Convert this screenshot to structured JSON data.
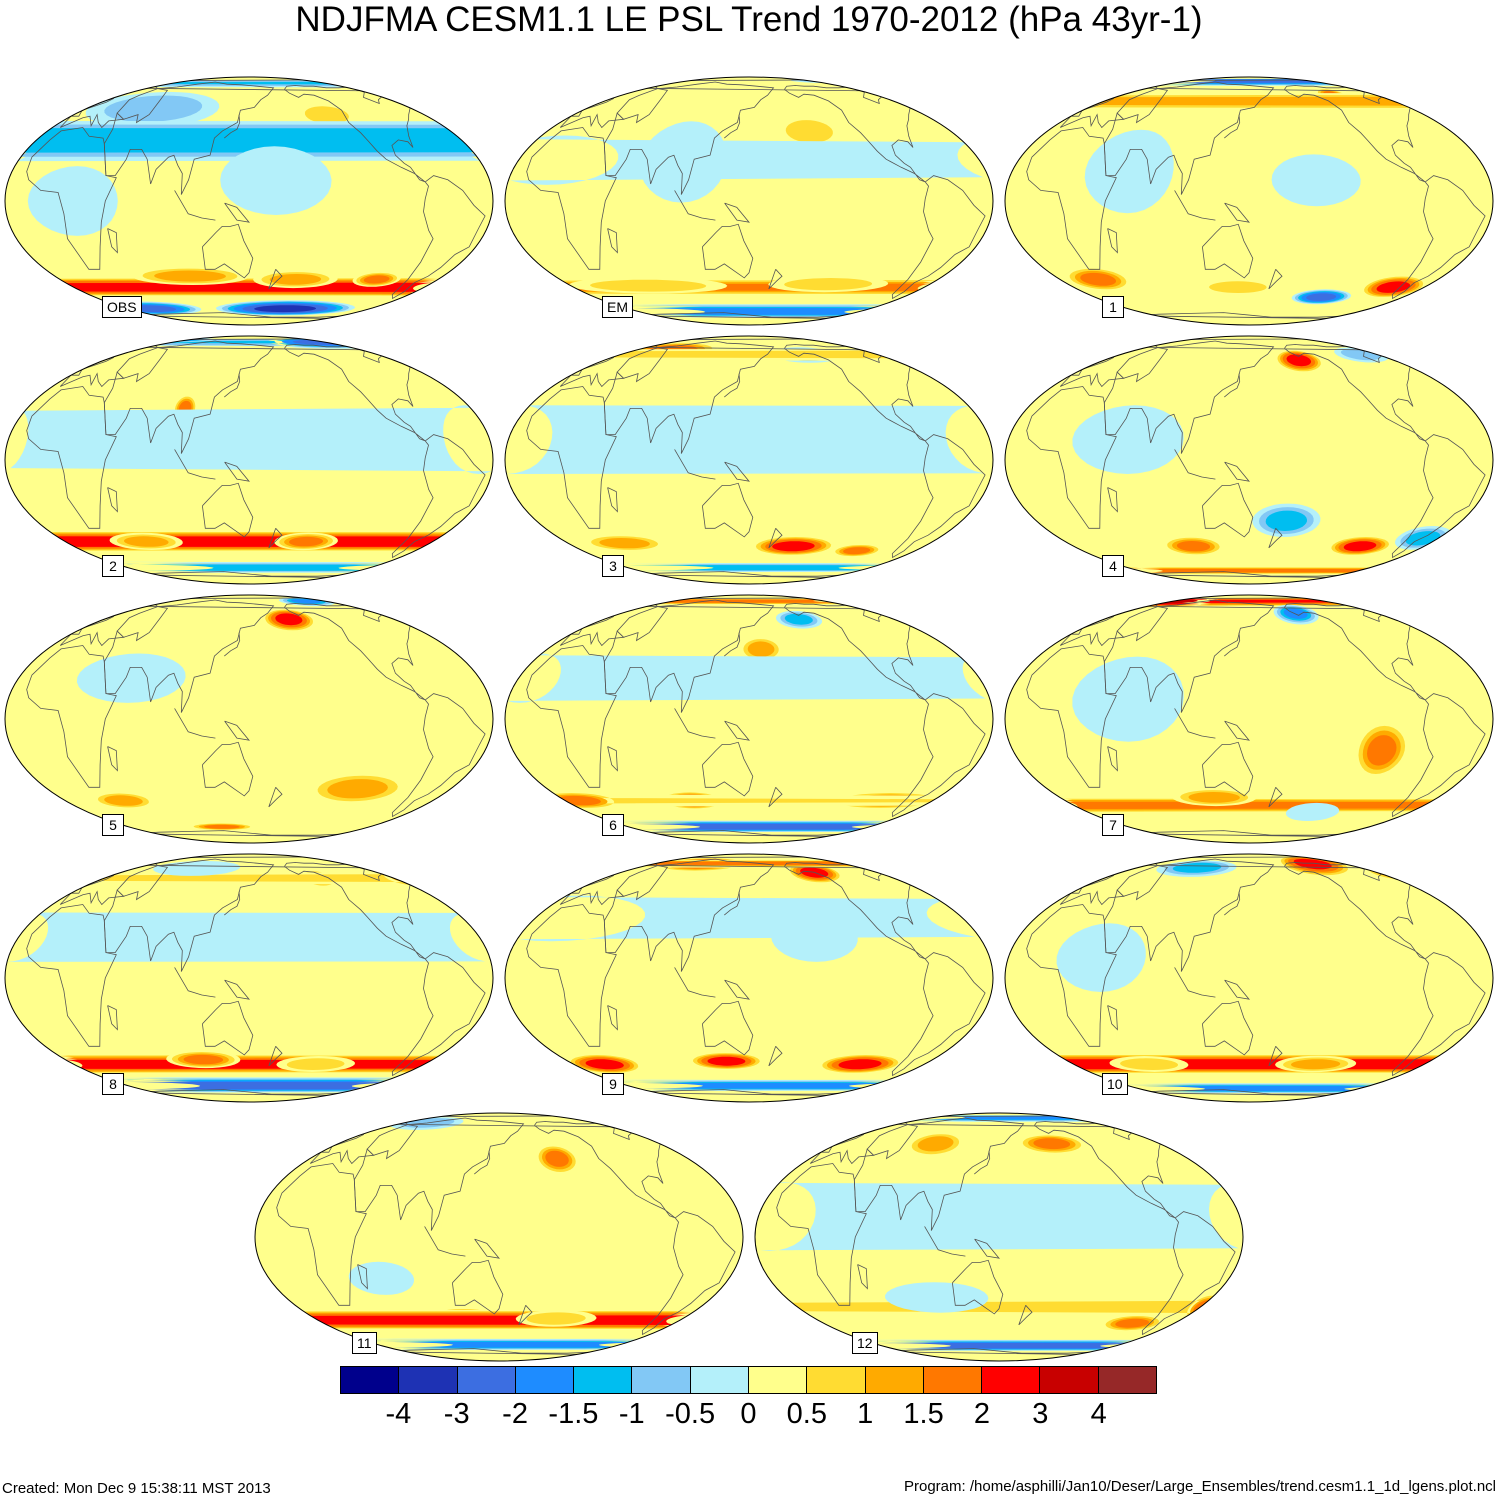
{
  "title": "NDJFMA CESM1.1 LE PSL Trend 1970-2012 (hPa 43yr-1)",
  "panels": [
    {
      "label": "OBS",
      "features": [
        {
          "lon": -170,
          "lat": -62,
          "rx": 80,
          "ry": 8,
          "v": -4
        },
        {
          "lon": 40,
          "lat": -62,
          "rx": 60,
          "ry": 7,
          "v": -3
        },
        {
          "lon": -40,
          "lat": -45,
          "rx": 45,
          "ry": 7,
          "v": 3
        },
        {
          "lon": -100,
          "lat": -40,
          "rx": 22,
          "ry": 5,
          "v": 2
        },
        {
          "lon": 100,
          "lat": -38,
          "rx": 55,
          "ry": 6,
          "v": 1.5
        },
        {
          "lon": -170,
          "lat": -40,
          "rx": 40,
          "ry": 6,
          "v": 1.5
        },
        {
          "lon": -140,
          "lat": 45,
          "rx": 30,
          "ry": 9,
          "v": 1
        },
        {
          "lon": 60,
          "lat": 50,
          "rx": 70,
          "ry": 15,
          "v": -1
        },
        {
          "lon": -60,
          "lat": 75,
          "rx": 60,
          "ry": 8,
          "v": -1.5
        },
        {
          "lon": -30,
          "lat": 30,
          "rx": 15,
          "ry": 12,
          "v": -1.5
        },
        {
          "lon": 20,
          "lat": 0,
          "rx": 40,
          "ry": 20,
          "v": -0.5
        },
        {
          "lon": 170,
          "lat": 10,
          "rx": 50,
          "ry": 20,
          "v": -0.5
        }
      ]
    },
    {
      "label": "EM",
      "features": [
        {
          "lon": 0,
          "lat": -65,
          "rx": 200,
          "ry": 8,
          "v": -2
        },
        {
          "lon": -40,
          "lat": -45,
          "rx": 35,
          "ry": 6,
          "v": 2
        },
        {
          "lon": 60,
          "lat": -44,
          "rx": 80,
          "ry": 6,
          "v": 1
        },
        {
          "lon": -140,
          "lat": -43,
          "rx": 60,
          "ry": 6,
          "v": 1
        },
        {
          "lon": -160,
          "lat": 35,
          "rx": 30,
          "ry": 10,
          "v": 1
        },
        {
          "lon": 0,
          "lat": 20,
          "rx": 60,
          "ry": 15,
          "v": -0.5
        },
        {
          "lon": 100,
          "lat": 20,
          "rx": 40,
          "ry": 25,
          "v": -0.5
        },
        {
          "lon": -90,
          "lat": 80,
          "rx": 60,
          "ry": 6,
          "v": -1
        }
      ]
    },
    {
      "label": "1",
      "features": [
        {
          "lon": 0,
          "lat": 80,
          "rx": 200,
          "ry": 10,
          "v": -3
        },
        {
          "lon": -120,
          "lat": 60,
          "rx": 18,
          "ry": 8,
          "v": 2
        },
        {
          "lon": -40,
          "lat": 55,
          "rx": 30,
          "ry": 8,
          "v": 1.5
        },
        {
          "lon": -80,
          "lat": -45,
          "rx": 30,
          "ry": 8,
          "v": 3
        },
        {
          "lon": -140,
          "lat": -52,
          "rx": 30,
          "ry": 6,
          "v": -3
        },
        {
          "lon": 20,
          "lat": -40,
          "rx": 30,
          "ry": 8,
          "v": 2
        },
        {
          "lon": 140,
          "lat": -45,
          "rx": 40,
          "ry": 6,
          "v": 1
        },
        {
          "lon": 60,
          "lat": 15,
          "rx": 40,
          "ry": 25,
          "v": -0.5
        },
        {
          "lon": -160,
          "lat": 10,
          "rx": 40,
          "ry": 15,
          "v": -0.5
        }
      ]
    },
    {
      "label": "2",
      "features": [
        {
          "lon": -100,
          "lat": 75,
          "rx": 100,
          "ry": 10,
          "v": -3
        },
        {
          "lon": 40,
          "lat": 80,
          "rx": 60,
          "ry": 6,
          "v": -2
        },
        {
          "lon": -30,
          "lat": -42,
          "rx": 35,
          "ry": 7,
          "v": 3
        },
        {
          "lon": -160,
          "lat": -42,
          "rx": 30,
          "ry": 6,
          "v": 2
        },
        {
          "lon": 60,
          "lat": -42,
          "rx": 35,
          "ry": 6,
          "v": 1.5
        },
        {
          "lon": 0,
          "lat": -62,
          "rx": 200,
          "ry": 6,
          "v": -1.5
        },
        {
          "lon": 100,
          "lat": 25,
          "rx": 10,
          "ry": 8,
          "v": 2
        },
        {
          "lon": -40,
          "lat": 10,
          "rx": 30,
          "ry": 20,
          "v": -0.5
        }
      ]
    },
    {
      "label": "3",
      "features": [
        {
          "lon": 60,
          "lat": 65,
          "rx": 60,
          "ry": 10,
          "v": 2
        },
        {
          "lon": -150,
          "lat": 60,
          "rx": 40,
          "ry": 8,
          "v": -1.5
        },
        {
          "lon": -40,
          "lat": 60,
          "rx": 20,
          "ry": 8,
          "v": 1
        },
        {
          "lon": -170,
          "lat": -45,
          "rx": 40,
          "ry": 7,
          "v": 3
        },
        {
          "lon": -110,
          "lat": -48,
          "rx": 25,
          "ry": 5,
          "v": 2
        },
        {
          "lon": 40,
          "lat": -43,
          "rx": 40,
          "ry": 6,
          "v": 1.5
        },
        {
          "lon": 0,
          "lat": -62,
          "rx": 200,
          "ry": 5,
          "v": -1.5
        },
        {
          "lon": -30,
          "lat": 10,
          "rx": 40,
          "ry": 20,
          "v": -0.5
        }
      ]
    },
    {
      "label": "4",
      "features": [
        {
          "lon": -160,
          "lat": 55,
          "rx": 25,
          "ry": 10,
          "v": 3
        },
        {
          "lon": -90,
          "lat": 60,
          "rx": 30,
          "ry": 8,
          "v": -1
        },
        {
          "lon": -110,
          "lat": -45,
          "rx": 30,
          "ry": 7,
          "v": 3
        },
        {
          "lon": 100,
          "lat": -45,
          "rx": 30,
          "ry": 7,
          "v": 2
        },
        {
          "lon": -60,
          "lat": -40,
          "rx": 25,
          "ry": 8,
          "v": -1.5
        },
        {
          "lon": 180,
          "lat": -30,
          "rx": 30,
          "ry": 10,
          "v": -1.5
        },
        {
          "lon": 0,
          "lat": -65,
          "rx": 100,
          "ry": 5,
          "v": 2
        },
        {
          "lon": 60,
          "lat": 10,
          "rx": 50,
          "ry": 20,
          "v": -0.5
        }
      ]
    },
    {
      "label": "5",
      "features": [
        {
          "lon": -170,
          "lat": 55,
          "rx": 28,
          "ry": 10,
          "v": 3
        },
        {
          "lon": -130,
          "lat": 75,
          "rx": 40,
          "ry": 8,
          "v": -2
        },
        {
          "lon": -60,
          "lat": 70,
          "rx": 30,
          "ry": 8,
          "v": -1.5
        },
        {
          "lon": -120,
          "lat": -35,
          "rx": 45,
          "ry": 10,
          "v": 1.5
        },
        {
          "lon": 40,
          "lat": -42,
          "rx": 30,
          "ry": 6,
          "v": 1.5
        },
        {
          "lon": 120,
          "lat": -62,
          "rx": 40,
          "ry": 4,
          "v": 2
        },
        {
          "lon": 60,
          "lat": 20,
          "rx": 50,
          "ry": 15,
          "v": -0.5
        }
      ]
    },
    {
      "label": "6",
      "features": [
        {
          "lon": -40,
          "lat": 75,
          "rx": 160,
          "ry": 6,
          "v": 2
        },
        {
          "lon": -160,
          "lat": 55,
          "rx": 25,
          "ry": 8,
          "v": -1.5
        },
        {
          "lon": 160,
          "lat": 35,
          "rx": 20,
          "ry": 8,
          "v": 1.5
        },
        {
          "lon": 100,
          "lat": -42,
          "rx": 30,
          "ry": 6,
          "v": 3
        },
        {
          "lon": -90,
          "lat": -42,
          "rx": 55,
          "ry": 6,
          "v": 2
        },
        {
          "lon": 0,
          "lat": -42,
          "rx": 40,
          "ry": 6,
          "v": 2
        },
        {
          "lon": 0,
          "lat": -62,
          "rx": 200,
          "ry": 6,
          "v": -3
        },
        {
          "lon": -20,
          "lat": 20,
          "rx": 30,
          "ry": 15,
          "v": -0.5
        }
      ]
    },
    {
      "label": "7",
      "features": [
        {
          "lon": 30,
          "lat": 75,
          "rx": 110,
          "ry": 10,
          "v": 4
        },
        {
          "lon": -160,
          "lat": 60,
          "rx": 25,
          "ry": 10,
          "v": -2
        },
        {
          "lon": -60,
          "lat": 70,
          "rx": 30,
          "ry": 8,
          "v": -1
        },
        {
          "lon": -110,
          "lat": -15,
          "rx": 22,
          "ry": 15,
          "v": 2
        },
        {
          "lon": -20,
          "lat": -45,
          "rx": 30,
          "ry": 6,
          "v": 2
        },
        {
          "lon": 120,
          "lat": -40,
          "rx": 40,
          "ry": 6,
          "v": 1.5
        },
        {
          "lon": 60,
          "lat": 10,
          "rx": 50,
          "ry": 25,
          "v": -0.5
        },
        {
          "lon": -150,
          "lat": -50,
          "rx": 30,
          "ry": 8,
          "v": -0.5
        }
      ]
    },
    {
      "label": "8",
      "features": [
        {
          "lon": 0,
          "lat": -62,
          "rx": 200,
          "ry": 8,
          "v": -3
        },
        {
          "lon": -20,
          "lat": -45,
          "rx": 40,
          "ry": 7,
          "v": 3
        },
        {
          "lon": 110,
          "lat": -42,
          "rx": 35,
          "ry": 6,
          "v": 2
        },
        {
          "lon": -150,
          "lat": -45,
          "rx": 40,
          "ry": 6,
          "v": 1
        },
        {
          "lon": -140,
          "lat": 55,
          "rx": 20,
          "ry": 8,
          "v": 1.5
        },
        {
          "lon": -50,
          "lat": 55,
          "rx": 30,
          "ry": 8,
          "v": 1.5
        },
        {
          "lon": 90,
          "lat": 65,
          "rx": 60,
          "ry": 10,
          "v": -0.5
        },
        {
          "lon": -30,
          "lat": 20,
          "rx": 30,
          "ry": 15,
          "v": -0.5
        }
      ]
    },
    {
      "label": "9",
      "features": [
        {
          "lon": 90,
          "lat": 70,
          "rx": 60,
          "ry": 10,
          "v": 3
        },
        {
          "lon": -140,
          "lat": 60,
          "rx": 30,
          "ry": 10,
          "v": 3
        },
        {
          "lon": -40,
          "lat": 70,
          "rx": 30,
          "ry": 6,
          "v": 2
        },
        {
          "lon": -110,
          "lat": -45,
          "rx": 40,
          "ry": 7,
          "v": 3
        },
        {
          "lon": 20,
          "lat": -45,
          "rx": 35,
          "ry": 7,
          "v": 3
        },
        {
          "lon": 130,
          "lat": -43,
          "rx": 35,
          "ry": 6,
          "v": 3
        },
        {
          "lon": 0,
          "lat": -62,
          "rx": 200,
          "ry": 6,
          "v": -2
        },
        {
          "lon": 0,
          "lat": 30,
          "rx": 80,
          "ry": 15,
          "v": -0.5
        },
        {
          "lon": -160,
          "lat": 20,
          "rx": 40,
          "ry": 15,
          "v": -0.5
        }
      ]
    },
    {
      "label": "10",
      "features": [
        {
          "lon": -130,
          "lat": 70,
          "rx": 45,
          "ry": 15,
          "v": 3
        },
        {
          "lon": 90,
          "lat": 65,
          "rx": 50,
          "ry": 10,
          "v": -1.5
        },
        {
          "lon": -60,
          "lat": 60,
          "rx": 25,
          "ry": 8,
          "v": 1.5
        },
        {
          "lon": -30,
          "lat": -45,
          "rx": 35,
          "ry": 7,
          "v": 3
        },
        {
          "lon": -150,
          "lat": -45,
          "rx": 40,
          "ry": 6,
          "v": 1.5
        },
        {
          "lon": 60,
          "lat": -45,
          "rx": 40,
          "ry": 6,
          "v": 1
        },
        {
          "lon": 0,
          "lat": -65,
          "rx": 200,
          "ry": 6,
          "v": -2
        },
        {
          "lon": 40,
          "lat": 10,
          "rx": 40,
          "ry": 20,
          "v": -0.5
        }
      ]
    },
    {
      "label": "11",
      "features": [
        {
          "lon": -160,
          "lat": 40,
          "rx": 20,
          "ry": 10,
          "v": 2
        },
        {
          "lon": 60,
          "lat": 70,
          "rx": 50,
          "ry": 10,
          "v": -1
        },
        {
          "lon": -60,
          "lat": 70,
          "rx": 30,
          "ry": 8,
          "v": -1
        },
        {
          "lon": 120,
          "lat": -42,
          "rx": 38,
          "ry": 7,
          "v": 3
        },
        {
          "lon": -40,
          "lat": -43,
          "rx": 45,
          "ry": 7,
          "v": 3
        },
        {
          "lon": -160,
          "lat": -42,
          "rx": 40,
          "ry": 6,
          "v": 1
        },
        {
          "lon": 0,
          "lat": -62,
          "rx": 200,
          "ry": 6,
          "v": -2
        },
        {
          "lon": 60,
          "lat": -20,
          "rx": 30,
          "ry": 10,
          "v": -0.5
        }
      ]
    },
    {
      "label": "12",
      "features": [
        {
          "lon": 0,
          "lat": 78,
          "rx": 200,
          "ry": 8,
          "v": -2
        },
        {
          "lon": -160,
          "lat": 50,
          "rx": 35,
          "ry": 8,
          "v": 2
        },
        {
          "lon": 90,
          "lat": 50,
          "rx": 30,
          "ry": 10,
          "v": 1.5
        },
        {
          "lon": -90,
          "lat": -45,
          "rx": 30,
          "ry": 6,
          "v": 2
        },
        {
          "lon": -40,
          "lat": -35,
          "rx": 15,
          "ry": 8,
          "v": 2
        },
        {
          "lon": 100,
          "lat": -30,
          "rx": 50,
          "ry": 10,
          "v": -0.5
        },
        {
          "lon": 0,
          "lat": -63,
          "rx": 200,
          "ry": 6,
          "v": -3
        },
        {
          "lon": -20,
          "lat": 10,
          "rx": 40,
          "ry": 20,
          "v": -0.5
        }
      ]
    }
  ],
  "colorbar": {
    "colors": [
      "#00008c",
      "#1e32b4",
      "#3c6ee1",
      "#1e8cff",
      "#00bef0",
      "#82c8f5",
      "#b4f0fa",
      "#ffff8c",
      "#ffdc32",
      "#ffaa00",
      "#ff7800",
      "#ff0000",
      "#c80000",
      "#962828"
    ],
    "ticks": [
      "-4",
      "-3",
      "-2",
      "-1.5",
      "-1",
      "-0.5",
      "0",
      "0.5",
      "1",
      "1.5",
      "2",
      "3",
      "4"
    ]
  },
  "footer": {
    "created": "Created: Mon Dec  9 15:38:11 MST 2013",
    "program": "Program: /home/asphilli/Jan10/Deser/Large_Ensembles/trend.cesm1.1_1d_lgens.plot.ncl"
  }
}
